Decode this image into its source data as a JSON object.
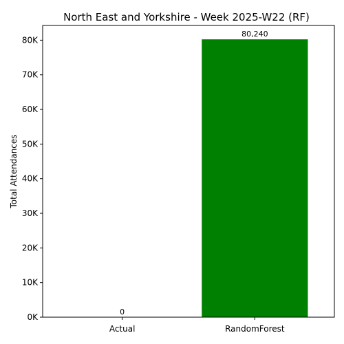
{
  "chart_data": {
    "type": "bar",
    "title": "North East and Yorkshire - Week 2025-W22 (RF)",
    "xlabel": "",
    "ylabel": "Total Attendances",
    "categories": [
      "Actual",
      "RandomForest"
    ],
    "values": [
      0,
      80240
    ],
    "data_labels": [
      "0",
      "80,240"
    ],
    "bar_colors": [
      "#1f77b4",
      "#008000"
    ],
    "ylim": [
      0,
      84252
    ],
    "yticks": [
      0,
      10000,
      20000,
      30000,
      40000,
      50000,
      60000,
      70000,
      80000
    ],
    "ytick_labels": [
      "0K",
      "10K",
      "20K",
      "30K",
      "40K",
      "50K",
      "60K",
      "70K",
      "80K"
    ],
    "grid": false,
    "legend": "none"
  }
}
